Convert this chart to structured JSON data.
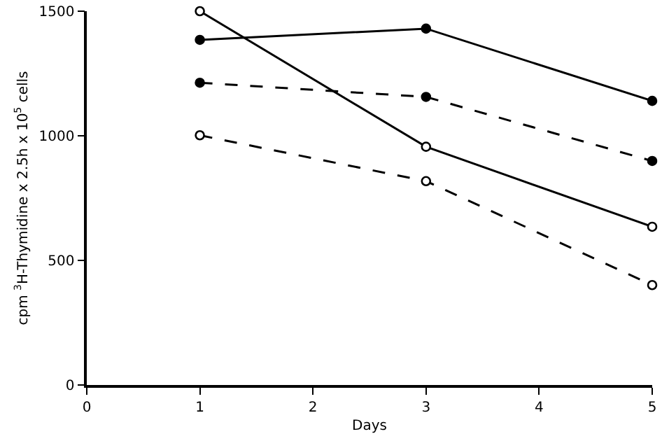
{
  "chart_data": {
    "type": "line",
    "xlabel": "Days",
    "ylabel": "cpm $^{3}$H-Thymidine x 2.5h x 10$^{5}$ cells",
    "x": [
      1,
      3,
      5
    ],
    "series": [
      {
        "color": "#000000",
        "values": [
          1385,
          1430,
          1140
        ],
        "line_style": "solid",
        "marker": "circle"
      },
      {
        "color": "#000000",
        "values": [
          1213,
          1156,
          899
        ],
        "line_style": "dashed",
        "marker": "circle"
      },
      {
        "color": "#000000",
        "values": [
          1500,
          956,
          635
        ],
        "line_style": "solid",
        "marker": "circle-open"
      },
      {
        "color": "#000000",
        "values": [
          1002,
          818,
          401
        ],
        "line_style": "dashed",
        "marker": "circle-open"
      }
    ],
    "xlim": [
      0,
      5
    ],
    "xticks": [
      0,
      1,
      2,
      3,
      4,
      5
    ],
    "ylim": [
      0,
      1500
    ],
    "yticks": [
      0,
      500,
      1000,
      1500
    ],
    "grid": false
  }
}
